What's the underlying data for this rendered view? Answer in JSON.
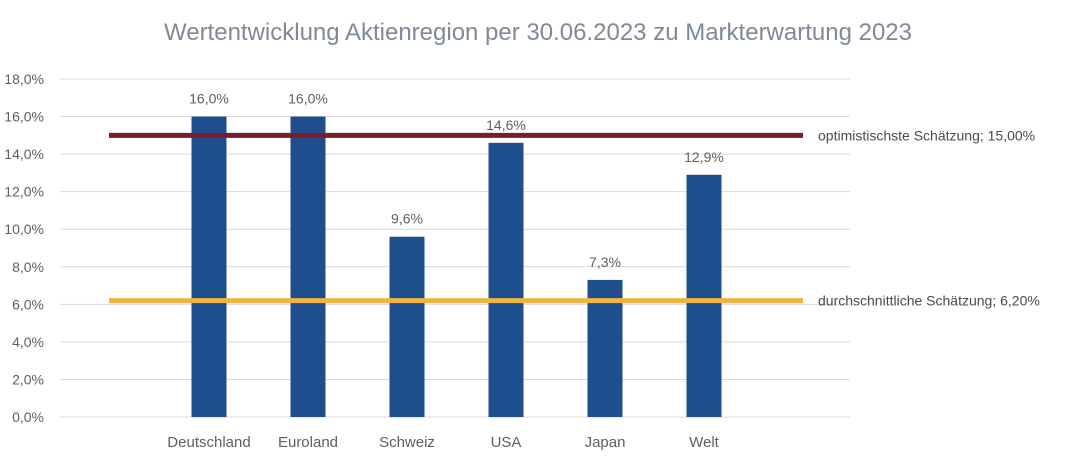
{
  "chart_data": {
    "type": "bar",
    "title": "Wertentwicklung Aktienregion per 30.06.2023 zu Markterwartung 2023",
    "xlabel": "",
    "ylabel": "",
    "categories": [
      "Deutschland",
      "Euroland",
      "Schweiz",
      "USA",
      "Japan",
      "Welt"
    ],
    "values": [
      16.0,
      16.0,
      9.6,
      14.6,
      7.3,
      12.9
    ],
    "data_labels": [
      "16,0%",
      "16,0%",
      "9,6%",
      "14,6%",
      "7,3%",
      "12,9%"
    ],
    "ylim": [
      0,
      18
    ],
    "y_ticks": [
      0,
      2,
      4,
      6,
      8,
      10,
      12,
      14,
      16,
      18
    ],
    "y_tick_labels": [
      "0,0%",
      "2,0%",
      "4,0%",
      "6,0%",
      "8,0%",
      "10,0%",
      "12,0%",
      "14,0%",
      "16,0%",
      "18,0%"
    ],
    "grid": true,
    "bar_color": "#1f4e8c",
    "reference_lines": [
      {
        "value": 15.0,
        "label": "optimistischste Schätzung; 15,00%",
        "color": "#7b1c2c"
      },
      {
        "value": 6.2,
        "label": "durchschnittliche Schätzung; 6,20%",
        "color": "#f0b443"
      }
    ]
  }
}
